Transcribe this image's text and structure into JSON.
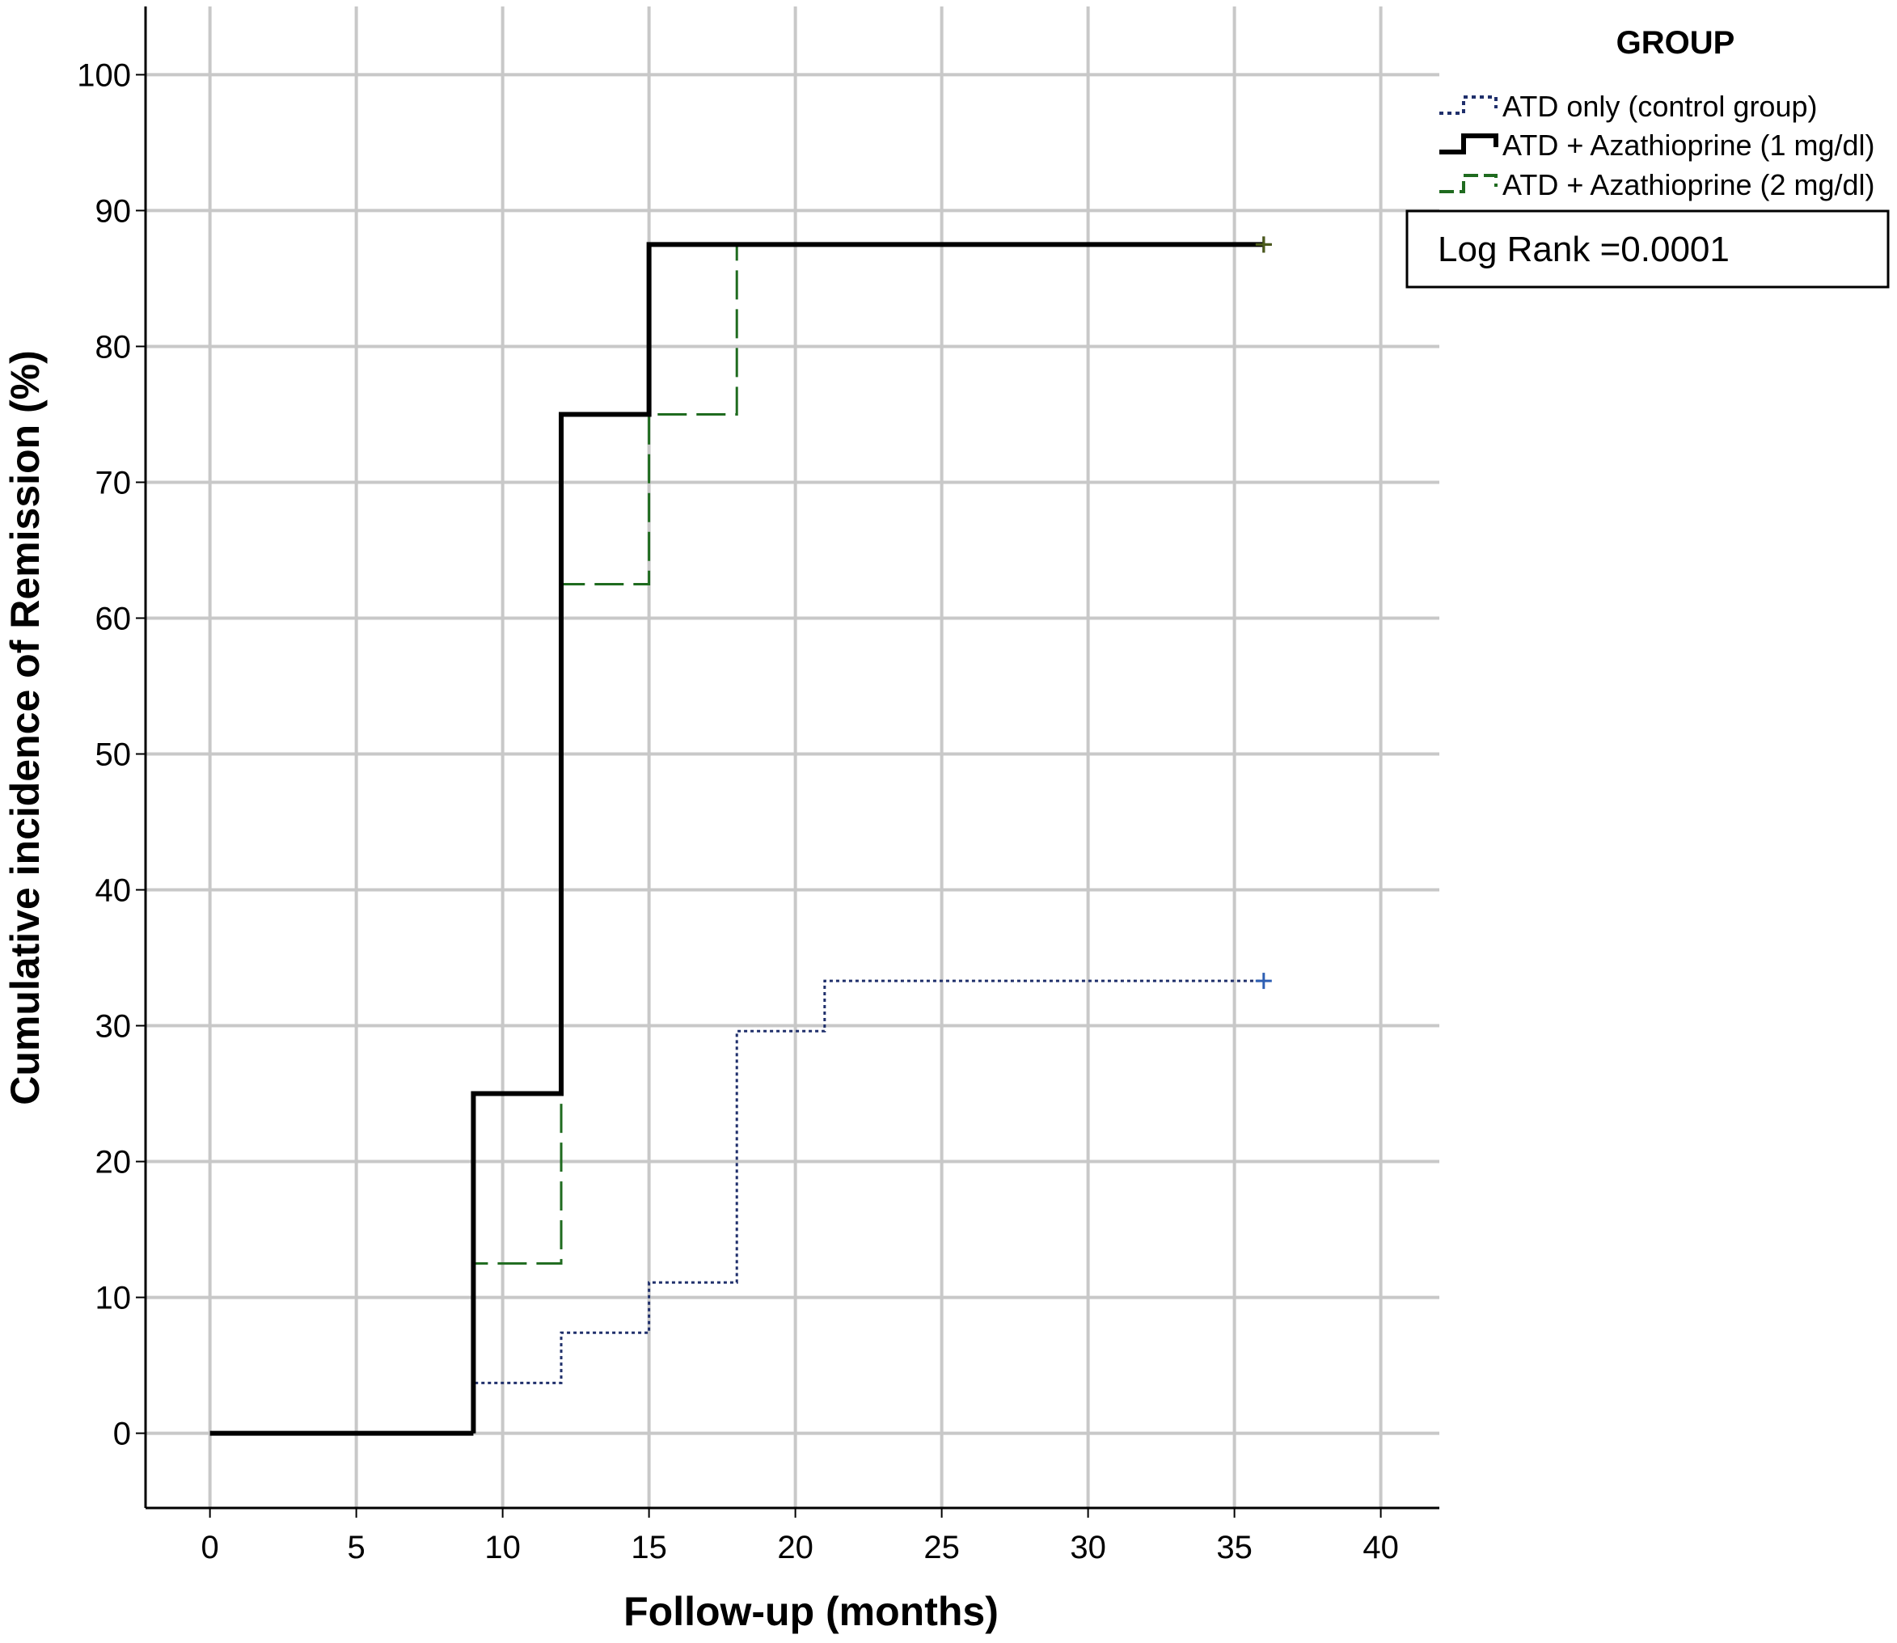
{
  "chart_data": {
    "type": "line",
    "subtype": "step",
    "title": "",
    "xlabel": "Follow-up (months)",
    "ylabel": "Cumulative incidence of Remission (%)",
    "xlim": [
      -2.2,
      42
    ],
    "ylim": [
      -5.5,
      105.5
    ],
    "xticks": [
      0,
      5,
      10,
      15,
      20,
      25,
      30,
      35,
      40
    ],
    "yticks": [
      0,
      10,
      20,
      30,
      40,
      50,
      60,
      70,
      80,
      90,
      100
    ],
    "xtick_labels": [
      "0",
      "5",
      "10",
      "15",
      "20",
      "25",
      "30",
      "35",
      "40"
    ],
    "ytick_labels": [
      "0",
      "10",
      "20",
      "30",
      "40",
      "50",
      "60",
      "70",
      "80",
      "90",
      "100"
    ],
    "grid": true,
    "legend_title": "GROUP",
    "legend_position": "top-right (outside plot)",
    "annotation": "Log Rank =0.0001",
    "series": [
      {
        "name": "ATD only (control group)",
        "style": "dotted",
        "color": "#1f2f6b",
        "censor_color": "#2e5fb3",
        "x": [
          9,
          12,
          15,
          18,
          21,
          36
        ],
        "y": [
          3.7,
          7.4,
          11.1,
          29.6,
          33.3,
          33.3
        ],
        "censor": [
          36,
          33.3
        ]
      },
      {
        "name": "ATD + Azathioprine (1 mg/dl)",
        "style": "solid",
        "color": "#000000",
        "censor_color": "#000000",
        "x": [
          9,
          12,
          15,
          36
        ],
        "y": [
          25,
          75,
          87.5,
          87.5
        ],
        "censor": [
          36,
          87.5
        ]
      },
      {
        "name": "ATD + Azathioprine (2 mg/dl)",
        "style": "dashed",
        "color": "#1f6b1f",
        "censor_color": "#4b5a1a",
        "x": [
          9,
          12,
          15,
          18,
          36
        ],
        "y": [
          12.5,
          62.5,
          75,
          87.5,
          87.5
        ],
        "censor": [
          36,
          87.5
        ]
      }
    ],
    "baseline": {
      "x": [
        0,
        9
      ],
      "y": [
        0,
        0
      ]
    }
  }
}
